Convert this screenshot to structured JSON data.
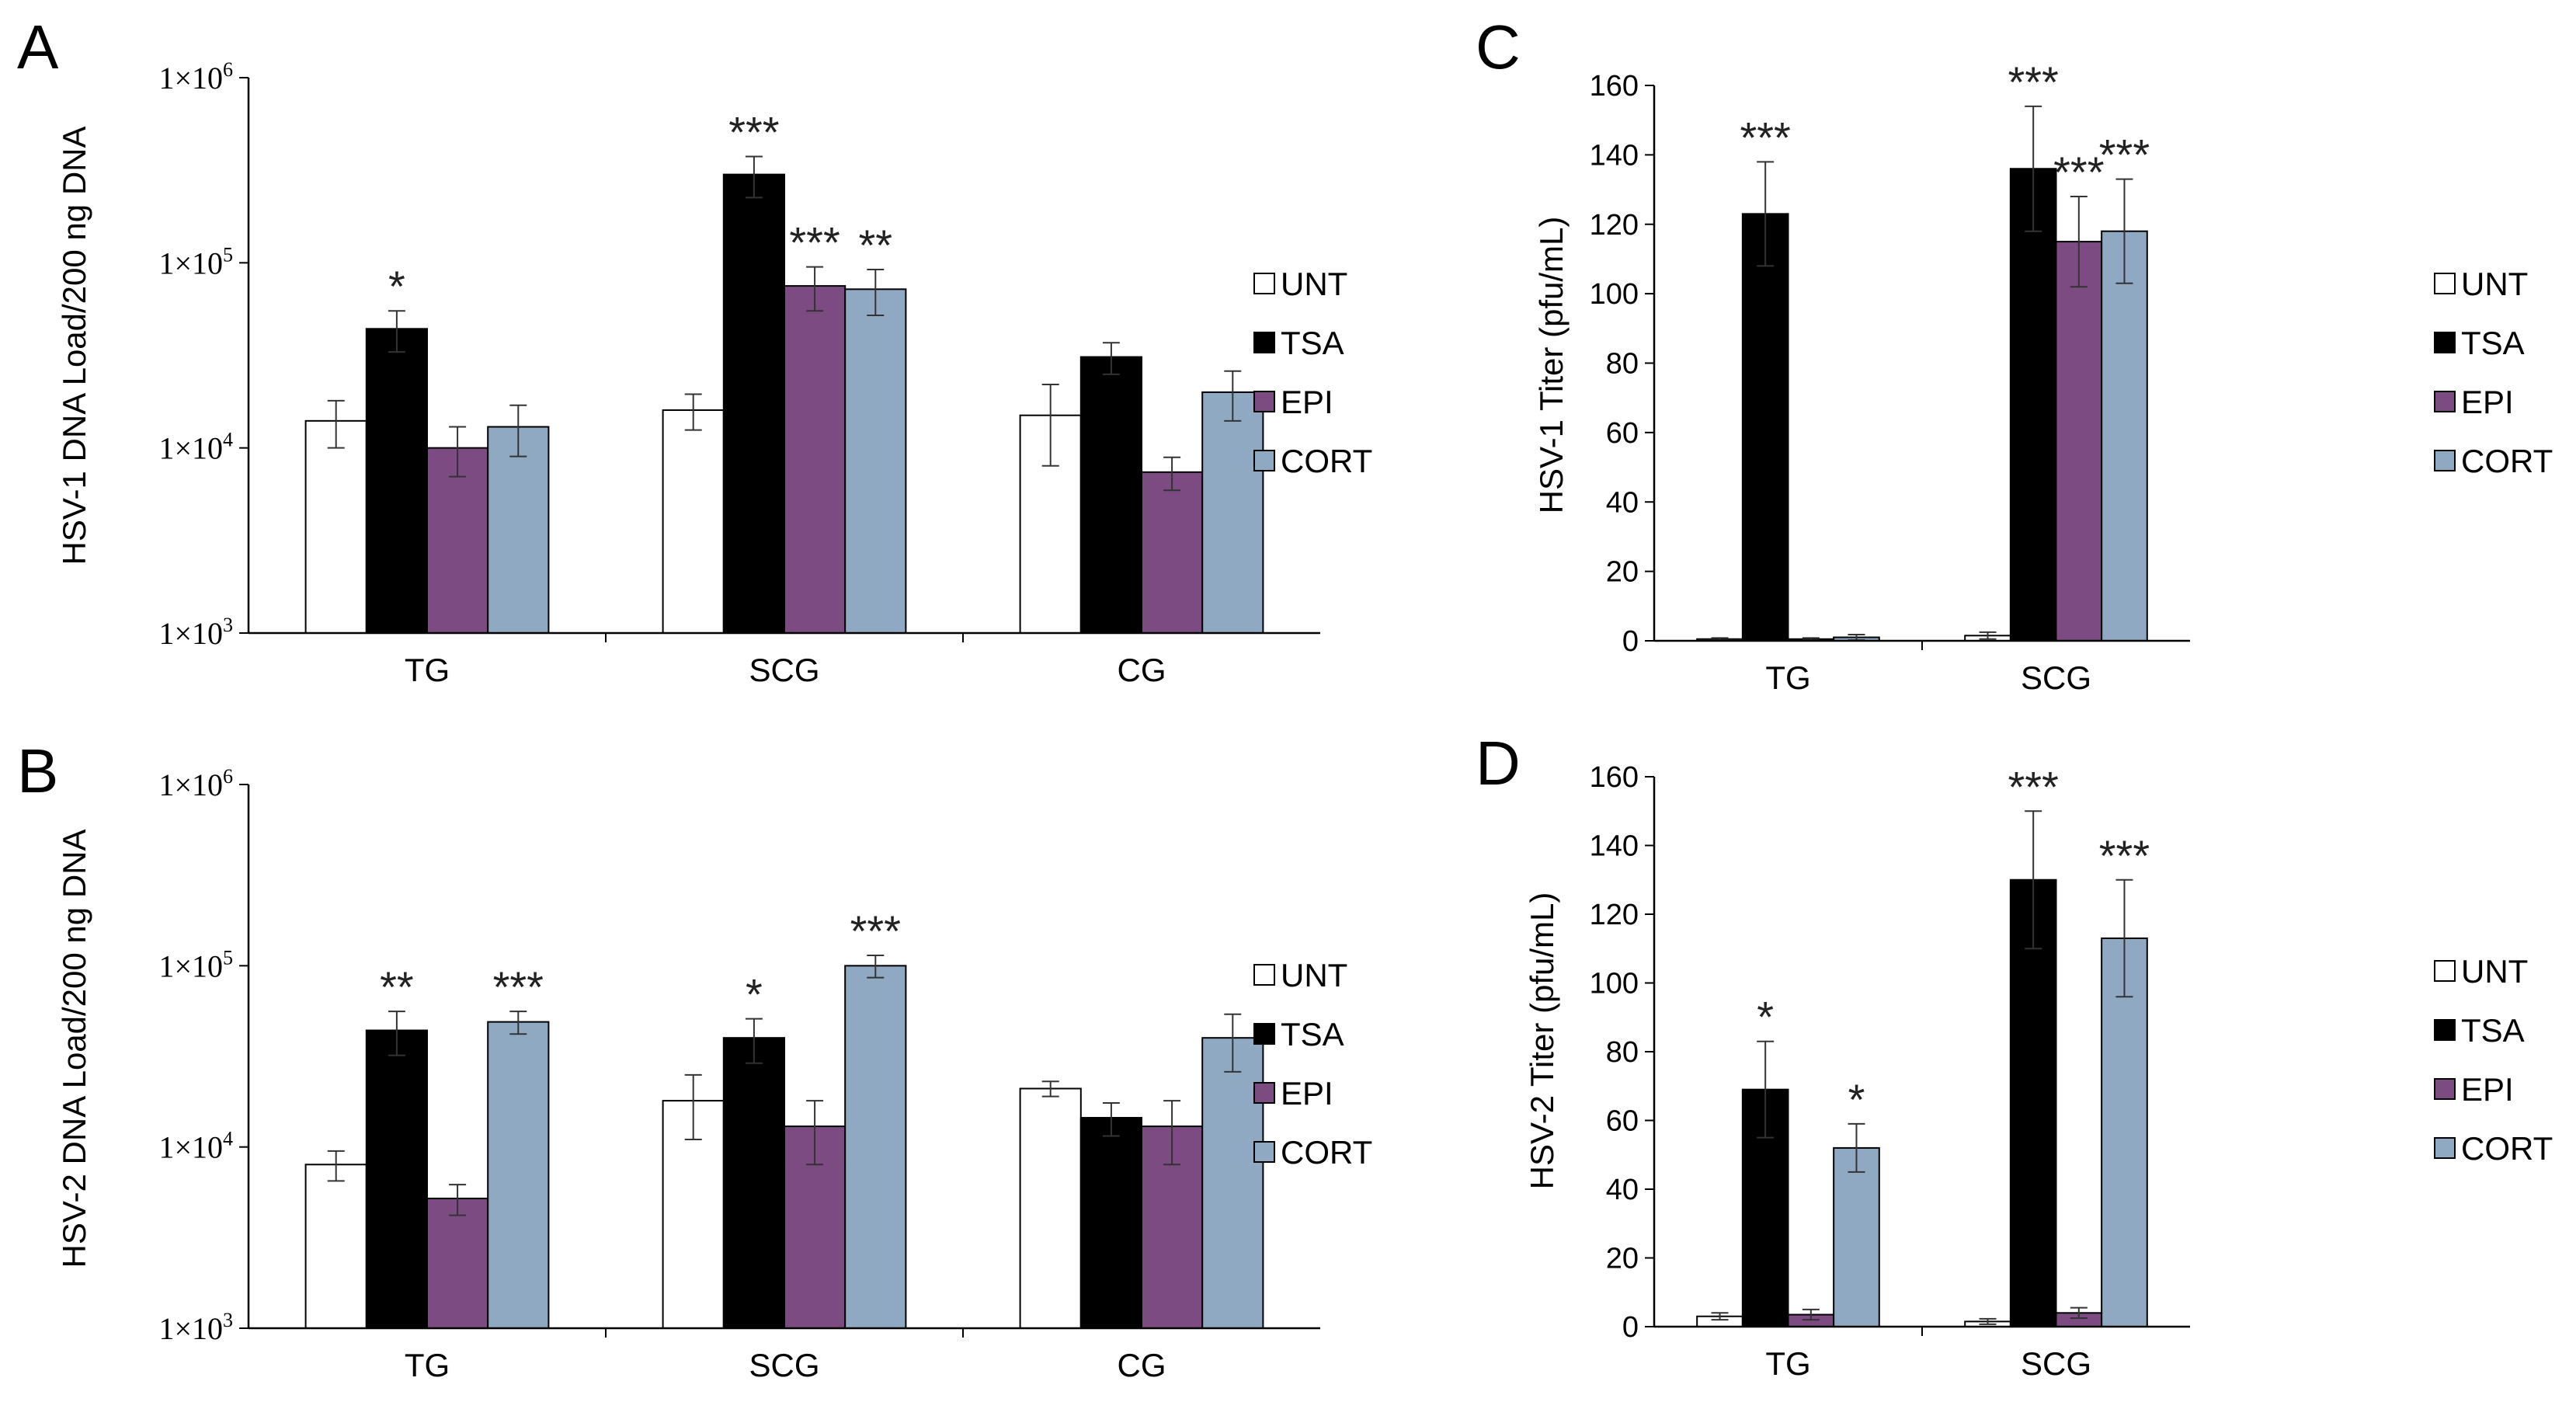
{
  "colors": {
    "UNT": "#ffffff",
    "TSA": "#000000",
    "EPI": "#7b4b82",
    "CORT": "#8fa9c3"
  },
  "chart_data": [
    {
      "id": "A",
      "panel_label": "A",
      "type": "bar",
      "scale": "log",
      "ylabel": "HSV-1 DNA Load/200 ng DNA",
      "ylim": [
        1000,
        1000000
      ],
      "yticks": [
        {
          "base": "1×10",
          "exp": "3"
        },
        {
          "base": "1×10",
          "exp": "4"
        },
        {
          "base": "1×10",
          "exp": "5"
        },
        {
          "base": "1×10",
          "exp": "6"
        }
      ],
      "categories": [
        "TG",
        "SCG",
        "CG"
      ],
      "legend": [
        "UNT",
        "TSA",
        "EPI",
        "CORT"
      ],
      "series": [
        {
          "name": "UNT",
          "values": [
            14000,
            16000,
            15000
          ],
          "errors": [
            4000,
            3500,
            7000
          ],
          "stars": [
            "",
            "",
            ""
          ]
        },
        {
          "name": "TSA",
          "values": [
            44000,
            300000,
            31000
          ],
          "errors": [
            11000,
            75000,
            6000
          ],
          "stars": [
            "*",
            "***",
            ""
          ]
        },
        {
          "name": "EPI",
          "values": [
            10000,
            75000,
            7400
          ],
          "errors": [
            3000,
            20000,
            1500
          ],
          "stars": [
            "",
            "***",
            ""
          ]
        },
        {
          "name": "CORT",
          "values": [
            13000,
            72000,
            20000
          ],
          "errors": [
            4000,
            20000,
            6000
          ],
          "stars": [
            "",
            "**",
            ""
          ]
        }
      ]
    },
    {
      "id": "B",
      "panel_label": "B",
      "type": "bar",
      "scale": "log",
      "ylabel": "HSV-2 DNA Load/200 ng DNA",
      "ylim": [
        1000,
        1000000
      ],
      "yticks": [
        {
          "base": "1×10",
          "exp": "3"
        },
        {
          "base": "1×10",
          "exp": "4"
        },
        {
          "base": "1×10",
          "exp": "5"
        },
        {
          "base": "1×10",
          "exp": "6"
        }
      ],
      "categories": [
        "TG",
        "SCG",
        "CG"
      ],
      "legend": [
        "UNT",
        "TSA",
        "EPI",
        "CORT"
      ],
      "series": [
        {
          "name": "UNT",
          "values": [
            8000,
            18000,
            21000
          ],
          "errors": [
            1500,
            7000,
            2000
          ],
          "stars": [
            "",
            "",
            ""
          ]
        },
        {
          "name": "TSA",
          "values": [
            44000,
            40000,
            14500
          ],
          "errors": [
            12000,
            11000,
            3000
          ],
          "stars": [
            "**",
            "*",
            ""
          ]
        },
        {
          "name": "EPI",
          "values": [
            5200,
            13000,
            13000
          ],
          "errors": [
            1000,
            5000,
            5000
          ],
          "stars": [
            "",
            "",
            ""
          ]
        },
        {
          "name": "CORT",
          "values": [
            49000,
            100000,
            40000
          ],
          "errors": [
            7000,
            14000,
            14000
          ],
          "stars": [
            "***",
            "***",
            ""
          ]
        }
      ]
    },
    {
      "id": "C",
      "panel_label": "C",
      "type": "bar",
      "scale": "linear",
      "ylabel": "HSV-1 Titer (pfu/mL)",
      "ylim": [
        0,
        160
      ],
      "yticks": [
        "0",
        "20",
        "40",
        "60",
        "80",
        "100",
        "120",
        "140",
        "160"
      ],
      "categories": [
        "TG",
        "SCG"
      ],
      "legend": [
        "UNT",
        "TSA",
        "EPI",
        "CORT"
      ],
      "series": [
        {
          "name": "UNT",
          "values": [
            0.5,
            1.5
          ],
          "errors": [
            0.3,
            1
          ],
          "stars": [
            "",
            ""
          ]
        },
        {
          "name": "TSA",
          "values": [
            123,
            136
          ],
          "errors": [
            15,
            18
          ],
          "stars": [
            "***",
            "***"
          ]
        },
        {
          "name": "EPI",
          "values": [
            0.5,
            115
          ],
          "errors": [
            0.3,
            13
          ],
          "stars": [
            "",
            "***"
          ]
        },
        {
          "name": "CORT",
          "values": [
            1,
            118
          ],
          "errors": [
            0.8,
            15
          ],
          "stars": [
            "",
            "***"
          ]
        }
      ]
    },
    {
      "id": "D",
      "panel_label": "D",
      "type": "bar",
      "scale": "linear",
      "ylabel": "HSV-2 Titer (pfu/mL)",
      "ylim": [
        0,
        160
      ],
      "yticks": [
        "0",
        "20",
        "40",
        "60",
        "80",
        "100",
        "120",
        "140",
        "160"
      ],
      "categories": [
        "TG",
        "SCG"
      ],
      "legend": [
        "UNT",
        "TSA",
        "EPI",
        "CORT"
      ],
      "series": [
        {
          "name": "UNT",
          "values": [
            3,
            1.5
          ],
          "errors": [
            1,
            0.8
          ],
          "stars": [
            "",
            ""
          ]
        },
        {
          "name": "TSA",
          "values": [
            69,
            130
          ],
          "errors": [
            14,
            20
          ],
          "stars": [
            "*",
            "***"
          ]
        },
        {
          "name": "EPI",
          "values": [
            3.5,
            4
          ],
          "errors": [
            1.5,
            1.5
          ],
          "stars": [
            "",
            ""
          ]
        },
        {
          "name": "CORT",
          "values": [
            52,
            113
          ],
          "errors": [
            7,
            17
          ],
          "stars": [
            "*",
            "***"
          ]
        }
      ]
    }
  ]
}
